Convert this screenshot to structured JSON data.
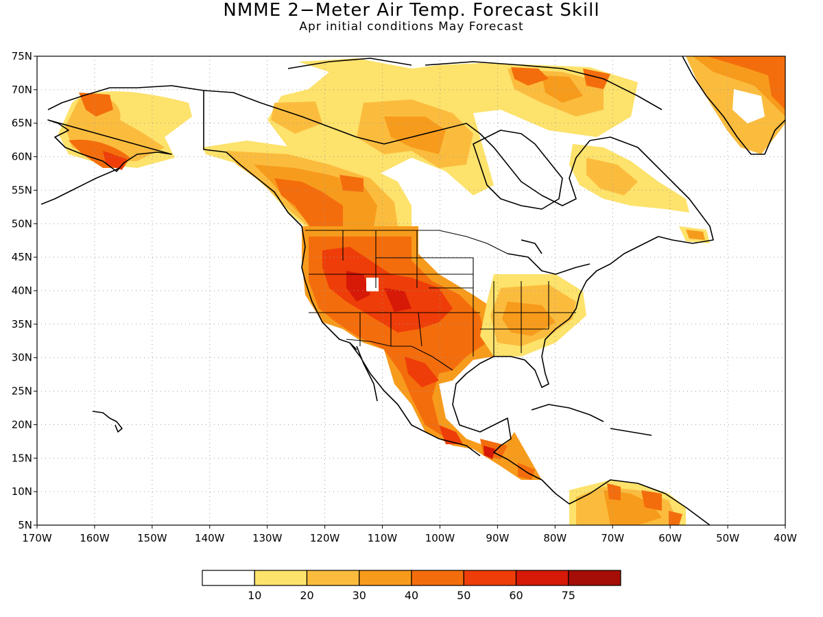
{
  "title": "NMME 2−Meter Air Temp. Forecast Skill",
  "subtitle": "Apr initial conditions   May Forecast",
  "map": {
    "projection": "equirectangular",
    "lon_range": [
      -170,
      -40
    ],
    "lat_range": [
      5,
      75
    ],
    "lat_ticks": [
      "75N",
      "70N",
      "65N",
      "60N",
      "55N",
      "50N",
      "45N",
      "40N",
      "35N",
      "30N",
      "25N",
      "20N",
      "15N",
      "10N",
      "5N"
    ],
    "lon_ticks": [
      "170W",
      "160W",
      "150W",
      "140W",
      "130W",
      "120W",
      "110W",
      "100W",
      "90W",
      "80W",
      "70W",
      "60W",
      "50W",
      "40W"
    ],
    "grid": "dotted",
    "coastline_color": "#000000"
  },
  "colorbar": {
    "colors": [
      "#ffffff",
      "#fde26b",
      "#fbbc3e",
      "#f79b1c",
      "#f46d0c",
      "#ee3d08",
      "#d71907",
      "#a50e06"
    ],
    "labels": [
      "10",
      "20",
      "30",
      "40",
      "50",
      "60",
      "75"
    ]
  }
}
